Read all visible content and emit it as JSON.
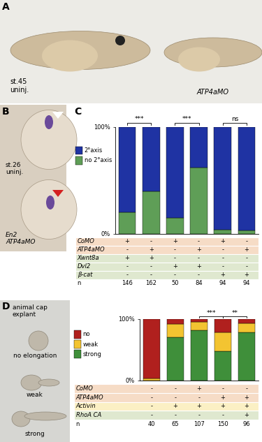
{
  "photos": {
    "A": {
      "label": "A",
      "stage": "st.45\nuninj.",
      "morphant": "ATP4aMO"
    },
    "B": {
      "label": "B",
      "top": "st.26\nuninj.",
      "bottom": "En2\nATP4aMO"
    },
    "D": {
      "label": "D",
      "title": "animal cap\nexplant",
      "examples": [
        "no elongation",
        "weak",
        "strong"
      ]
    }
  },
  "chart_data": [
    {
      "panel": "C",
      "type": "bar",
      "stacked": true,
      "categories": [
        null,
        null,
        null,
        null,
        null,
        null
      ],
      "series": [
        {
          "name": "no 2°axis",
          "color": "#5f9e57",
          "values": [
            20,
            40,
            15,
            62,
            4,
            3
          ]
        },
        {
          "name": "2°axis",
          "color": "#1f33a3",
          "values": [
            80,
            60,
            85,
            38,
            96,
            97
          ]
        }
      ],
      "ylim": [
        0,
        100
      ],
      "yticks": [
        {
          "value": 0,
          "label": "0%"
        },
        {
          "value": 100,
          "label": "100%"
        }
      ],
      "legend": "upper left",
      "significance": [
        {
          "bars": [
            0,
            1
          ],
          "label": "***"
        },
        {
          "bars": [
            2,
            3
          ],
          "label": "***"
        },
        {
          "bars": [
            4,
            5
          ],
          "label": "ns"
        }
      ],
      "table": [
        {
          "label": "CoMO",
          "values": [
            "+",
            "-",
            "+",
            "-",
            "+",
            "-"
          ],
          "color": "#f6dcc6"
        },
        {
          "label": "ATP4aMO",
          "values": [
            "-",
            "+",
            "-",
            "+",
            "-",
            "+"
          ],
          "color": "#f6dcc6"
        },
        {
          "label": "Xwnt8a",
          "values": [
            "+",
            "+",
            "-",
            "-",
            "-",
            "-"
          ],
          "color": "#dfe8cf"
        },
        {
          "label": "Dvl2",
          "values": [
            "-",
            "-",
            "+",
            "+",
            "-",
            "-"
          ],
          "color": "#dfe8cf"
        },
        {
          "label": "β-cat",
          "values": [
            "-",
            "-",
            "-",
            "-",
            "+",
            "+"
          ],
          "color": "#dfe8cf"
        },
        {
          "label": "n",
          "values": [
            146,
            162,
            50,
            84,
            94,
            94
          ],
          "color": "#ffffff"
        }
      ]
    },
    {
      "panel": "",
      "type": "bar",
      "stacked": true,
      "categories": [
        null,
        null,
        null,
        null,
        null
      ],
      "series": [
        {
          "name": "strong",
          "color": "#3f8f3a",
          "values": [
            0,
            70,
            82,
            48,
            78
          ]
        },
        {
          "name": "weak",
          "color": "#f3c431",
          "values": [
            3,
            22,
            14,
            30,
            15
          ]
        },
        {
          "name": "no",
          "color": "#b0201e",
          "values": [
            97,
            8,
            4,
            22,
            7
          ]
        }
      ],
      "ylim": [
        0,
        100
      ],
      "yticks": [
        {
          "value": 0,
          "label": "0%"
        },
        {
          "value": 100,
          "label": "100%"
        }
      ],
      "legend": "upper left",
      "significance": [
        {
          "bars": [
            2,
            3
          ],
          "label": "***"
        },
        {
          "bars": [
            3,
            4
          ],
          "label": "**"
        }
      ],
      "table": [
        {
          "label": "CoMO",
          "values": [
            "-",
            "-",
            "+",
            "-",
            "-"
          ],
          "color": "#f6dcc6"
        },
        {
          "label": "ATP4aMO",
          "values": [
            "-",
            "-",
            "-",
            "+",
            "+"
          ],
          "color": "#f6dcc6"
        },
        {
          "label": "Activin",
          "values": [
            "-",
            "+",
            "+",
            "+",
            "+"
          ],
          "color": "#fbf0c4"
        },
        {
          "label": "RhoA CA",
          "values": [
            "-",
            "-",
            "-",
            "-",
            "+"
          ],
          "color": "#dfe8cf"
        },
        {
          "label": "n",
          "values": [
            40,
            65,
            107,
            150,
            96
          ],
          "color": "#ffffff"
        }
      ]
    }
  ]
}
